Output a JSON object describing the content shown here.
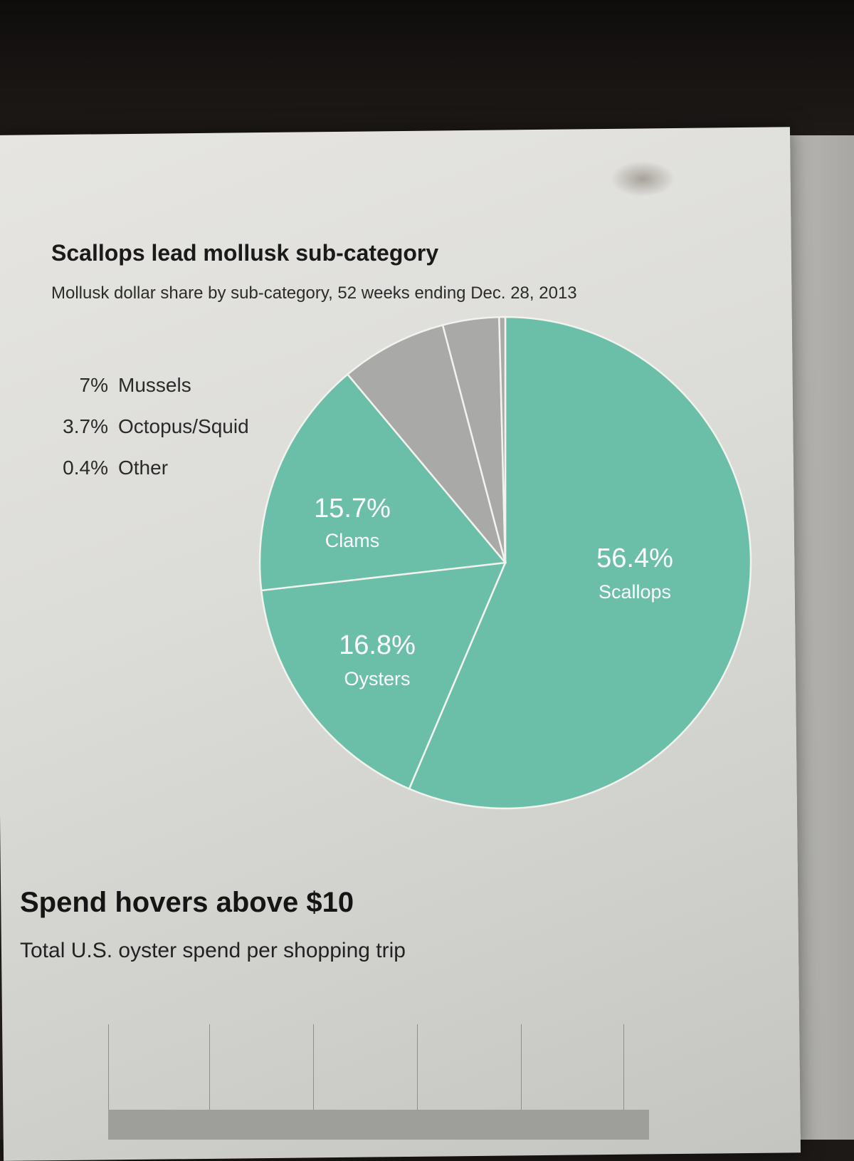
{
  "chart_data": {
    "type": "pie",
    "title": "Scallops lead mollusk sub-category",
    "subtitle": "Mollusk dollar share by sub-category, 52 weeks ending Dec. 28, 2013",
    "slices": [
      {
        "label": "Scallops",
        "value": 56.4,
        "display": "56.4%",
        "color": "#6bbfa9"
      },
      {
        "label": "Oysters",
        "value": 16.8,
        "display": "16.8%",
        "color": "#6bbfa9"
      },
      {
        "label": "Clams",
        "value": 15.7,
        "display": "15.7%",
        "color": "#6bbfa9"
      },
      {
        "label": "Mussels",
        "value": 7,
        "display": "7%",
        "color": "#a9aaa8"
      },
      {
        "label": "Octopus/Squid",
        "value": 3.7,
        "display": "3.7%",
        "color": "#a9aaa8"
      },
      {
        "label": "Other",
        "value": 0.4,
        "display": "0.4%",
        "color": "#a9aaa8"
      }
    ],
    "legend_placement": "top-left",
    "legend": [
      {
        "display": "7%",
        "label": "Mussels"
      },
      {
        "display": "3.7%",
        "label": "Octopus/Squid"
      },
      {
        "display": "0.4%",
        "label": "Other"
      }
    ]
  },
  "next_section": {
    "title": "Spend hovers above $10",
    "subtitle": "Total U.S. oyster spend per shopping trip"
  }
}
